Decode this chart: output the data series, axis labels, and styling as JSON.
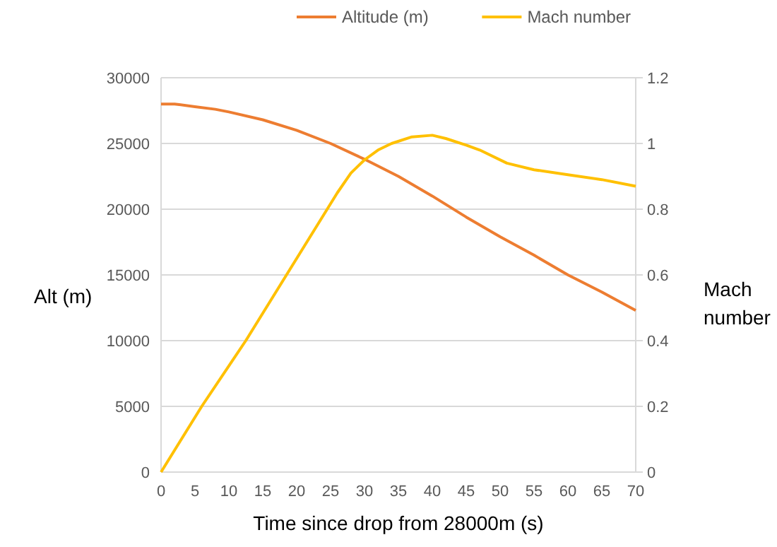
{
  "chart_data": {
    "type": "line",
    "xlabel": "Time since drop from 28000m (s)",
    "ylabel": "Alt (m)",
    "y2label": "Mach number",
    "legend": "top",
    "grid": "y",
    "marker": "none",
    "line_style": "solid",
    "xlim": [
      0,
      70
    ],
    "xticks": [
      0,
      5,
      10,
      15,
      20,
      25,
      30,
      35,
      40,
      45,
      50,
      55,
      60,
      65,
      70
    ],
    "ylim": [
      0,
      30000
    ],
    "yticks": [
      0,
      5000,
      10000,
      15000,
      20000,
      25000,
      30000
    ],
    "y2lim": [
      0,
      1.2
    ],
    "y2ticks": [
      0,
      0.2,
      0.4,
      0.6,
      0.8,
      1,
      1.2
    ],
    "series": [
      {
        "name": "Altitude (m)",
        "color": "#ed7d31",
        "x": [
          0,
          2,
          5,
          8,
          10,
          15,
          20,
          25,
          30,
          35,
          40,
          45,
          50,
          55,
          60,
          65,
          70
        ],
        "values": [
          28000,
          28000,
          27800,
          27600,
          27400,
          26800,
          26000,
          25000,
          23800,
          22500,
          21000,
          19400,
          17900,
          16500,
          15000,
          13700,
          12300
        ]
      },
      {
        "name": "Mach number",
        "color": "#ffc000",
        "axis": "y2",
        "x": [
          0,
          6,
          12.5,
          18.5,
          24.5,
          26,
          28,
          30,
          32,
          34,
          37,
          40,
          42,
          45,
          47,
          51,
          55,
          60,
          65,
          70
        ],
        "values": [
          0,
          0.2,
          0.4,
          0.6,
          0.8,
          0.85,
          0.91,
          0.95,
          0.98,
          1.0,
          1.02,
          1.025,
          1.015,
          0.995,
          0.98,
          0.94,
          0.92,
          0.905,
          0.89,
          0.87
        ]
      }
    ]
  }
}
